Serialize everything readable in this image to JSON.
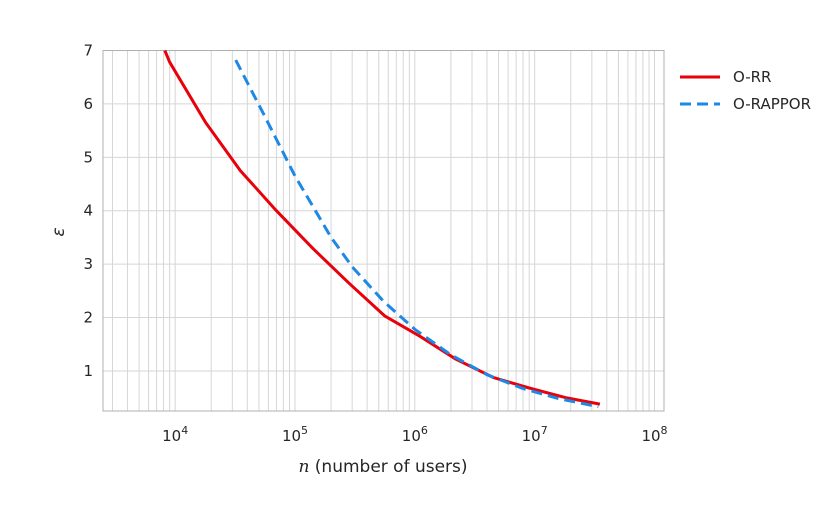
{
  "chart_data": {
    "type": "line",
    "title": "",
    "xlabel_var": "n",
    "xlabel_rest": " (number of users)",
    "ylabel": "ε",
    "x_scale": "log",
    "xlim": [
      2500,
      120000000
    ],
    "ylim": [
      0.25,
      7
    ],
    "grid": true,
    "legend_position": "right-outside-top",
    "x_ticks": [
      {
        "value": 10000,
        "base": "10",
        "exp": "4"
      },
      {
        "value": 100000,
        "base": "10",
        "exp": "5"
      },
      {
        "value": 1000000,
        "base": "10",
        "exp": "6"
      },
      {
        "value": 10000000,
        "base": "10",
        "exp": "7"
      },
      {
        "value": 100000000,
        "base": "10",
        "exp": "8"
      }
    ],
    "y_ticks": [
      {
        "value": 1,
        "label": "1"
      },
      {
        "value": 2,
        "label": "2"
      },
      {
        "value": 3,
        "label": "3"
      },
      {
        "value": 4,
        "label": "4"
      },
      {
        "value": 5,
        "label": "5"
      },
      {
        "value": 6,
        "label": "6"
      },
      {
        "value": 7,
        "label": "7"
      }
    ],
    "series": [
      {
        "name": "O-RR",
        "color": "#e8000b",
        "style": "solid",
        "points": [
          [
            8200,
            7.0
          ],
          [
            9000,
            6.78
          ],
          [
            18000,
            5.65
          ],
          [
            35000,
            4.75
          ],
          [
            70000,
            4.0
          ],
          [
            140000,
            3.3
          ],
          [
            280000,
            2.65
          ],
          [
            560000,
            2.03
          ],
          [
            1100000,
            1.65
          ],
          [
            2200000,
            1.22
          ],
          [
            4500000,
            0.88
          ],
          [
            9000000,
            0.68
          ],
          [
            18000000,
            0.5
          ],
          [
            35000000,
            0.38
          ]
        ]
      },
      {
        "name": "O-RAPPOR",
        "color": "#1e88e5",
        "style": "dashed",
        "points": [
          [
            32000,
            6.82
          ],
          [
            55000,
            5.8
          ],
          [
            100000,
            4.65
          ],
          [
            200000,
            3.5
          ],
          [
            300000,
            2.95
          ],
          [
            550000,
            2.3
          ],
          [
            1000000,
            1.78
          ],
          [
            2000000,
            1.3
          ],
          [
            4000000,
            0.93
          ],
          [
            8000000,
            0.67
          ],
          [
            16000000,
            0.48
          ],
          [
            34000000,
            0.33
          ]
        ]
      }
    ]
  }
}
